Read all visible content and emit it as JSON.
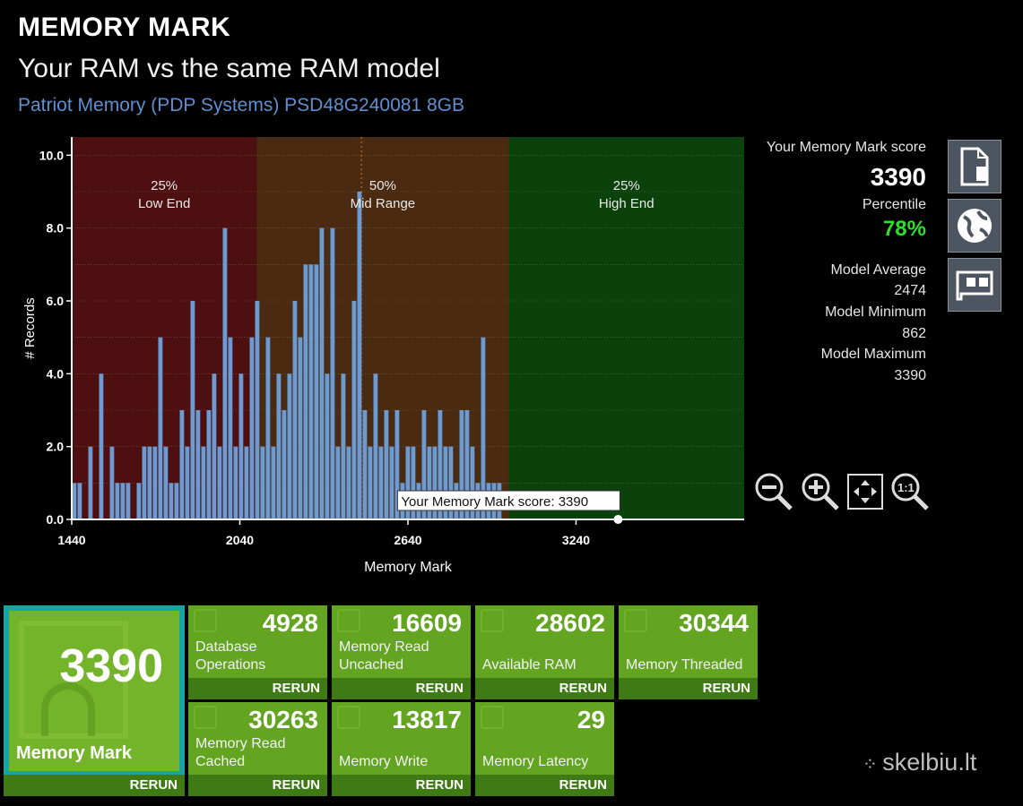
{
  "header": {
    "title": "MEMORY MARK",
    "subtitle": "Your RAM vs the same RAM model",
    "model": "Patriot Memory (PDP Systems) PSD48G240081 8GB"
  },
  "chart_data": {
    "type": "bar",
    "xlabel": "Memory Mark",
    "ylabel": "# Records",
    "xlim": [
      1440,
      3840
    ],
    "ylim": [
      0,
      10.5
    ],
    "x_ticks": [
      "1440",
      "2040",
      "2640",
      "3240"
    ],
    "y_ticks": [
      "0.0",
      "2.0",
      "4.0",
      "6.0",
      "8.0",
      "10.0"
    ],
    "grid": true,
    "bin_start": 1440,
    "bin_width": 19.2,
    "values": [
      1,
      1,
      0,
      2,
      0,
      4,
      0,
      2,
      1,
      1,
      1,
      0,
      1,
      2,
      2,
      2,
      5,
      2,
      1,
      1,
      3,
      2,
      6,
      3,
      2,
      3,
      4,
      2,
      8,
      5,
      2,
      4,
      2,
      5,
      6,
      2,
      5,
      2,
      4,
      3,
      4,
      6,
      5,
      7,
      7,
      7,
      8,
      4,
      8,
      2,
      4,
      2,
      6,
      9,
      3,
      2,
      4,
      2,
      3,
      2,
      3,
      1,
      2,
      2,
      1,
      3,
      2,
      2,
      3,
      2,
      2,
      1,
      3,
      3,
      2,
      1,
      5,
      1,
      1,
      1
    ],
    "regions": [
      {
        "label_pct": "25%",
        "label": "Low End",
        "from": 1440,
        "to": 2100,
        "color": "#4d0f0f"
      },
      {
        "label_pct": "50%",
        "label": "Mid Range",
        "from": 2100,
        "to": 3000,
        "color": "#4a2a10"
      },
      {
        "label_pct": "25%",
        "label": "High End",
        "from": 3000,
        "to": 3840,
        "color": "#0b420b"
      }
    ],
    "bar_color": "#6b9bd2",
    "average_line": 2474,
    "your_score": 3390,
    "your_score_label": "Your Memory Mark score: 3390"
  },
  "sidebar": {
    "score_label": "Your Memory Mark score",
    "score": "3390",
    "percentile_label": "Percentile",
    "percentile": "78%",
    "avg_label": "Model Average",
    "avg": "2474",
    "min_label": "Model Minimum",
    "min": "862",
    "max_label": "Model Maximum",
    "max": "3390"
  },
  "main_tile": {
    "value": "3390",
    "label": "Memory Mark",
    "rerun": "RERUN"
  },
  "tiles": [
    {
      "value": "4928",
      "label": "Database\nOperations",
      "rerun": "RERUN"
    },
    {
      "value": "16609",
      "label": "Memory Read\nUncached",
      "rerun": "RERUN"
    },
    {
      "value": "28602",
      "label": "Available RAM",
      "rerun": "RERUN"
    },
    {
      "value": "30344",
      "label": "Memory Threaded",
      "rerun": "RERUN"
    },
    {
      "value": "30263",
      "label": "Memory Read\nCached",
      "rerun": "RERUN"
    },
    {
      "value": "13817",
      "label": "Memory Write",
      "rerun": "RERUN"
    },
    {
      "value": "29",
      "label": "Memory Latency",
      "rerun": "RERUN"
    }
  ],
  "watermark": "skelbiu.lt",
  "icons": {
    "report": "report-icon",
    "web": "globe-icon",
    "hardware": "memory-card-icon",
    "zoom_out": "zoom-out-icon",
    "zoom_in": "zoom-in-icon",
    "zoom_fit": "zoom-fit-icon",
    "zoom_reset": "zoom-reset-icon"
  }
}
